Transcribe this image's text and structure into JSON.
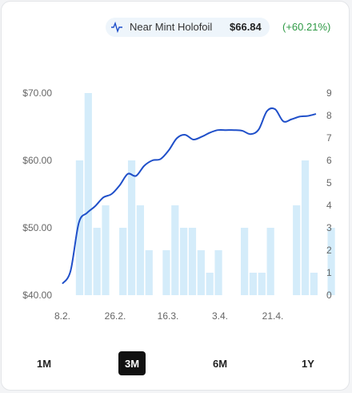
{
  "legend": {
    "icon": "line-chart-icon",
    "name": "Near Mint Holofoil",
    "price": "$66.84",
    "change": "(+60.21%)",
    "change_color": "#2e9a45"
  },
  "ranges": [
    "1M",
    "3M",
    "6M",
    "1Y"
  ],
  "active_range": "3M",
  "chart_data": {
    "type": "line+bar",
    "title": "",
    "x_tick_labels": [
      "8.2.",
      "26.2.",
      "16.3.",
      "3.4.",
      "21.4."
    ],
    "price_axis": {
      "ticks": [
        "$70.00",
        "$60.00",
        "$50.00",
        "$40.00"
      ],
      "ylim": [
        40,
        70
      ]
    },
    "volume_axis": {
      "ticks": [
        "9",
        "8",
        "7",
        "6",
        "5",
        "4",
        "3",
        "2",
        "1",
        "0"
      ],
      "ylim": [
        0,
        9
      ]
    },
    "series": [
      {
        "kind": "line",
        "color": "#1f4fc9",
        "values": [
          41.7,
          43.6,
          50.7,
          52.2,
          53.2,
          54.5,
          55.0,
          56.3,
          58.0,
          57.7,
          59.2,
          60.0,
          60.2,
          61.5,
          63.3,
          63.8,
          63.1,
          63.5,
          64.1,
          64.5,
          64.5,
          64.5,
          64.4,
          63.9,
          64.6,
          67.3,
          67.6,
          65.8,
          66.1,
          66.5,
          66.6,
          66.9
        ]
      },
      {
        "kind": "bar",
        "color": "#d4ecfa",
        "values": [
          0,
          6,
          9,
          3,
          4,
          0,
          3,
          6,
          4,
          2,
          0,
          2,
          4,
          3,
          3,
          2,
          1,
          2,
          0,
          0,
          3,
          1,
          1,
          3,
          0,
          0,
          4,
          6,
          1,
          0,
          3
        ]
      }
    ],
    "grid": false
  }
}
